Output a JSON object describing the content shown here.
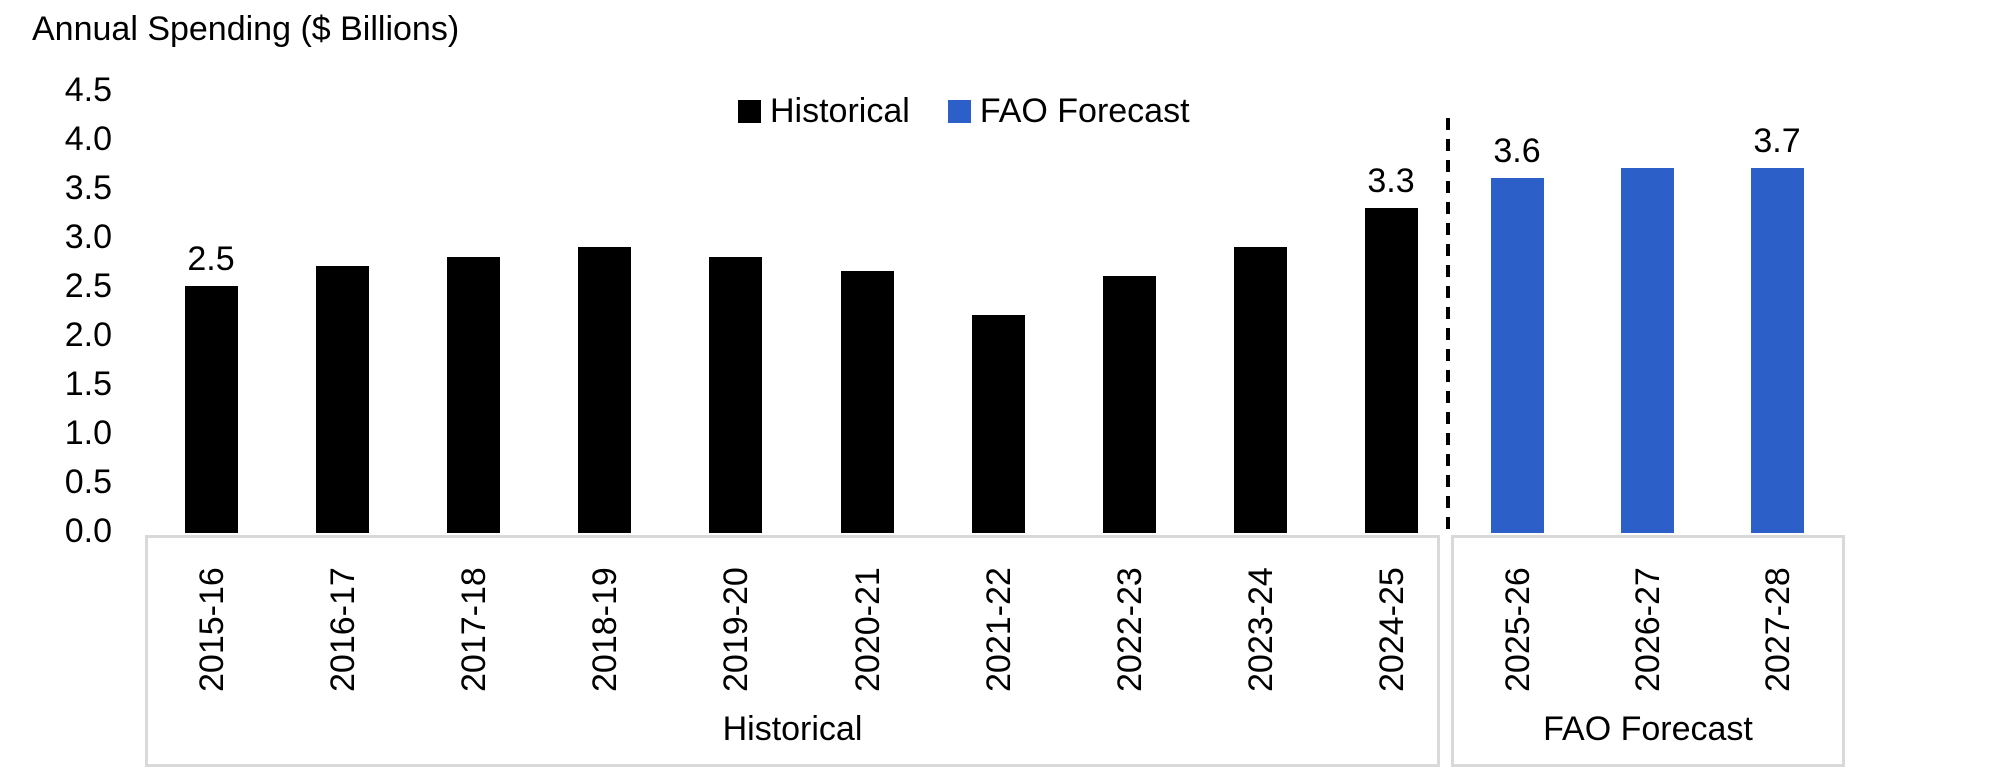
{
  "title": "Annual Spending ($ Billions)",
  "legend": {
    "items": [
      {
        "label": "Historical",
        "color": "#000000"
      },
      {
        "label": "FAO Forecast",
        "color": "#2D5FC8"
      }
    ]
  },
  "chart_data": {
    "type": "bar",
    "title": "Annual Spending ($ Billions)",
    "ylabel": "Annual Spending ($ Billions)",
    "ylim": [
      0,
      4.5
    ],
    "y_ticks": [
      "0.0",
      "0.5",
      "1.0",
      "1.5",
      "2.0",
      "2.5",
      "3.0",
      "3.5",
      "4.0",
      "4.5"
    ],
    "grid": false,
    "legend_position": "top-center",
    "categories": [
      "2015-16",
      "2016-17",
      "2017-18",
      "2018-19",
      "2019-20",
      "2020-21",
      "2021-22",
      "2022-23",
      "2023-24",
      "2024-25",
      "2025-26",
      "2026-27",
      "2027-28"
    ],
    "series": [
      {
        "name": "Historical",
        "color": "#000000",
        "values": [
          2.5,
          2.7,
          2.8,
          2.9,
          2.8,
          2.65,
          2.2,
          2.6,
          2.9,
          3.3,
          null,
          null,
          null
        ]
      },
      {
        "name": "FAO Forecast",
        "color": "#2D5FC8",
        "values": [
          null,
          null,
          null,
          null,
          null,
          null,
          null,
          null,
          null,
          null,
          3.6,
          3.7,
          3.7
        ]
      }
    ],
    "data_labels": {
      "2015-16": "2.5",
      "2024-25": "3.3",
      "2025-26": "3.6",
      "2027-28": "3.7"
    },
    "group_labels": [
      {
        "label": "Historical",
        "from": "2015-16",
        "to": "2024-25"
      },
      {
        "label": "FAO Forecast",
        "from": "2025-26",
        "to": "2027-28"
      }
    ],
    "divider": {
      "style": "dashed",
      "color": "#000000",
      "between": [
        "2024-25",
        "2025-26"
      ]
    },
    "axis_box_color": "#D9D9D9"
  }
}
